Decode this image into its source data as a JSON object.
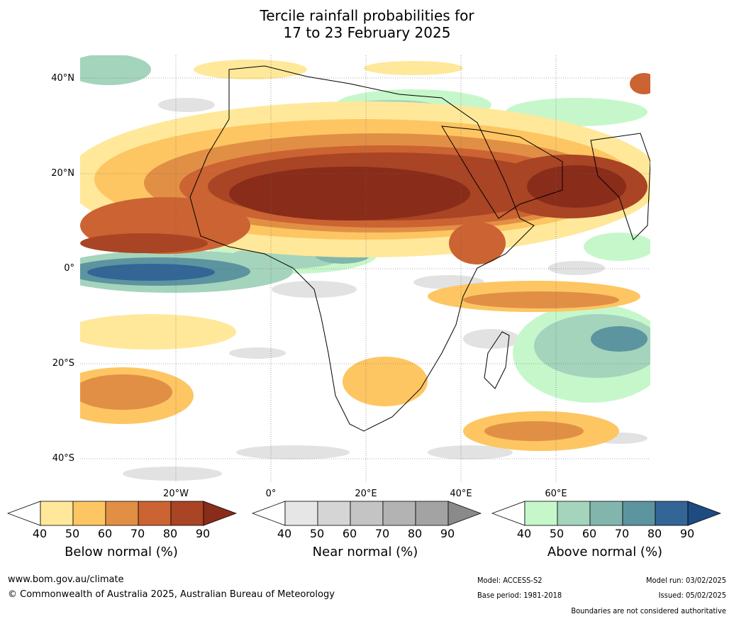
{
  "title": {
    "line1": "Tercile rainfall probabilities for",
    "line2": "17 to 23 February 2025"
  },
  "lat_labels": [
    "40°N",
    "20°N",
    "0°",
    "20°S",
    "40°S"
  ],
  "lon_labels": [
    "20°W",
    "0°",
    "20°E",
    "40°E",
    "60°E"
  ],
  "legends": [
    {
      "label": "Below normal (%)",
      "ticks": [
        "40",
        "50",
        "60",
        "70",
        "80",
        "90"
      ],
      "colors": [
        "#ffffff",
        "#ffe89a",
        "#fdc662",
        "#e28f46",
        "#cb6332",
        "#a94424",
        "#8a2c1a"
      ]
    },
    {
      "label": "Near normal (%)",
      "ticks": [
        "40",
        "50",
        "60",
        "70",
        "80",
        "90"
      ],
      "colors": [
        "#ffffff",
        "#e6e6e6",
        "#d5d5d5",
        "#c4c4c4",
        "#b3b3b3",
        "#a3a3a3",
        "#8a8a8a"
      ]
    },
    {
      "label": "Above normal (%)",
      "ticks": [
        "40",
        "50",
        "60",
        "70",
        "80",
        "90"
      ],
      "colors": [
        "#ffffff",
        "#c6f7cb",
        "#a4d4bc",
        "#82b6ac",
        "#5c949f",
        "#336696",
        "#1e4b80"
      ]
    }
  ],
  "footer": {
    "url": "www.bom.gov.au/climate",
    "copyright": "© Commonwealth of Australia 2025, Australian Bureau of Meteorology",
    "model": "Model: ACCESS-S2",
    "base_period": "Base period: 1981-2018",
    "model_run": "Model run: 03/02/2025",
    "issued": "Issued: 05/02/2025",
    "disclaimer": "Boundaries are not considered authoritative"
  }
}
